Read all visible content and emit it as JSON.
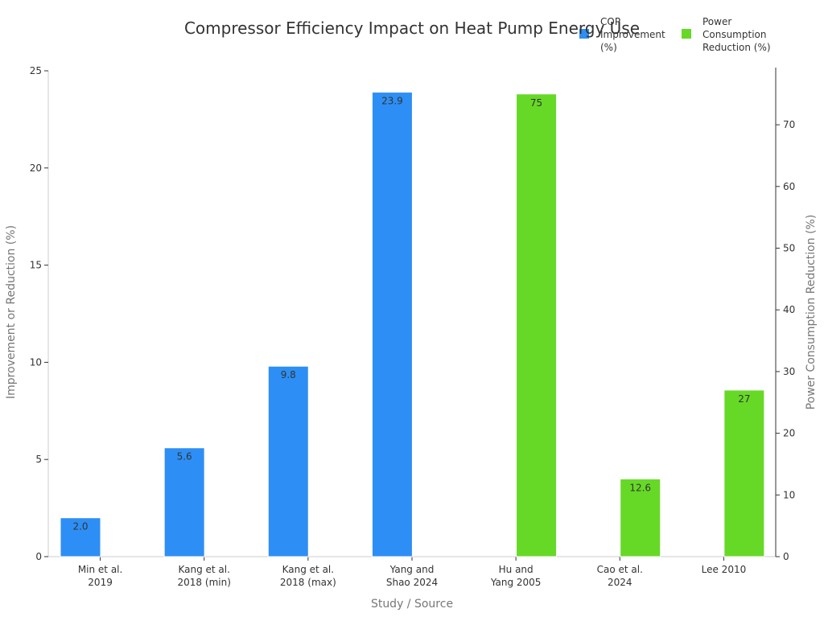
{
  "chart_data": {
    "type": "bar",
    "title": "Compressor Efficiency Impact on Heat Pump Energy Use",
    "xlabel": "Study / Source",
    "ylabel": "Improvement or Reduction (%)",
    "y2label": "Power Consumption Reduction (%)",
    "ylim": [
      0,
      25
    ],
    "y2lim": [
      0,
      78.75
    ],
    "yticks": [
      "0",
      "5",
      "10",
      "15",
      "20",
      "25"
    ],
    "y2ticks": [
      "0",
      "10",
      "20",
      "30",
      "40",
      "50",
      "60",
      "70"
    ],
    "grid": false,
    "legend_position": "top-right",
    "categories": [
      [
        "Min et al.",
        "2019"
      ],
      [
        "Kang et al.",
        "2018 (min)"
      ],
      [
        "Kang et al.",
        "2018 (max)"
      ],
      [
        "Yang and",
        "Shao 2024"
      ],
      [
        "Hu and",
        "Yang 2005"
      ],
      [
        "Cao et al.",
        "2024"
      ],
      [
        "Lee 2010"
      ]
    ],
    "series": [
      {
        "name": "COP Improvement (%)",
        "legend_lines": [
          "COP",
          "Improvement",
          "(%)"
        ],
        "axis": "left",
        "color": "#2d8ff5",
        "values": [
          2.0,
          5.6,
          9.8,
          23.9,
          null,
          null,
          null
        ],
        "labels": [
          "2.0",
          "5.6",
          "9.8",
          "23.9",
          "",
          "",
          ""
        ]
      },
      {
        "name": "Power Consumption Reduction (%)",
        "legend_lines": [
          "Power",
          "Consumption",
          "Reduction (%)"
        ],
        "axis": "right",
        "color": "#66d926",
        "values": [
          null,
          null,
          null,
          null,
          75,
          12.6,
          27
        ],
        "labels": [
          "",
          "",
          "",
          "",
          "75",
          "12.6",
          "27"
        ]
      }
    ]
  }
}
